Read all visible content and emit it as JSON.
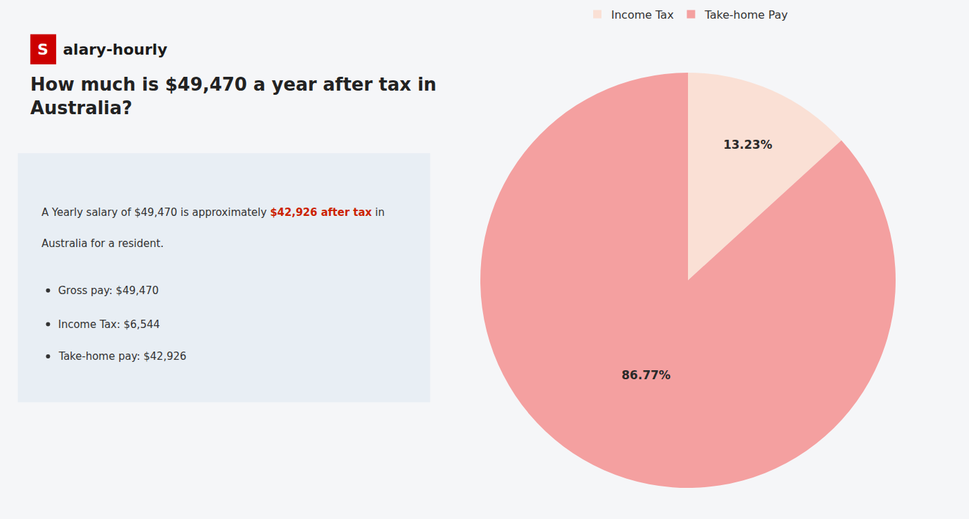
{
  "chart_data": {
    "type": "pie",
    "title": "How much is $49,470 a year after tax in\nAustralia?",
    "categories": [
      "Income Tax",
      "Take-home Pay"
    ],
    "values": [
      13.23,
      86.77
    ],
    "value_labels": [
      "13.23%",
      "86.77%"
    ],
    "colors": [
      "#fae0d5",
      "#f4a0a0"
    ],
    "data_labels": true,
    "legend": "top",
    "annotations": [
      "S",
      "alary-hourly",
      "A Yearly salary of $49,470 is approximately ",
      "$42,926 after tax",
      " in",
      "Australia for a resident.",
      "Gross pay: $49,470",
      "Income Tax: $6,544",
      "Take-home pay: $42,926"
    ]
  }
}
